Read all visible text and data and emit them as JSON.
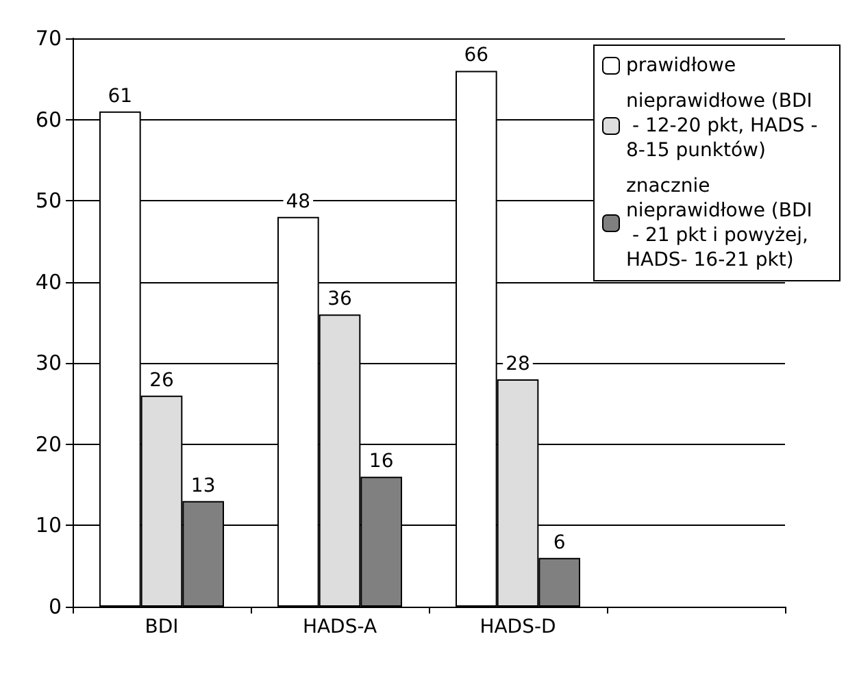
{
  "chart_data": {
    "type": "bar",
    "categories": [
      "BDI",
      "HADS-A",
      "HADS-D",
      null
    ],
    "series": [
      {
        "name": "prawidłowe",
        "color": "#ffffff",
        "values": [
          61,
          48,
          66,
          null
        ]
      },
      {
        "name": "nieprawidłowe (BDI - 12-20 pkt, HADS - 8-15 punktów)",
        "color": "#dddddd",
        "values": [
          26,
          36,
          28,
          null
        ]
      },
      {
        "name": "znacznie nieprawidłowe (BDI - 21 pkt i powyżej, HADS- 16-21 pkt)",
        "color": "#808080",
        "values": [
          13,
          16,
          6,
          null
        ]
      }
    ],
    "ylim": [
      0,
      70
    ],
    "yticks": [
      0,
      10,
      20,
      30,
      40,
      50,
      60,
      70
    ],
    "grid": "y",
    "legend": "top right",
    "data_labels": true
  }
}
